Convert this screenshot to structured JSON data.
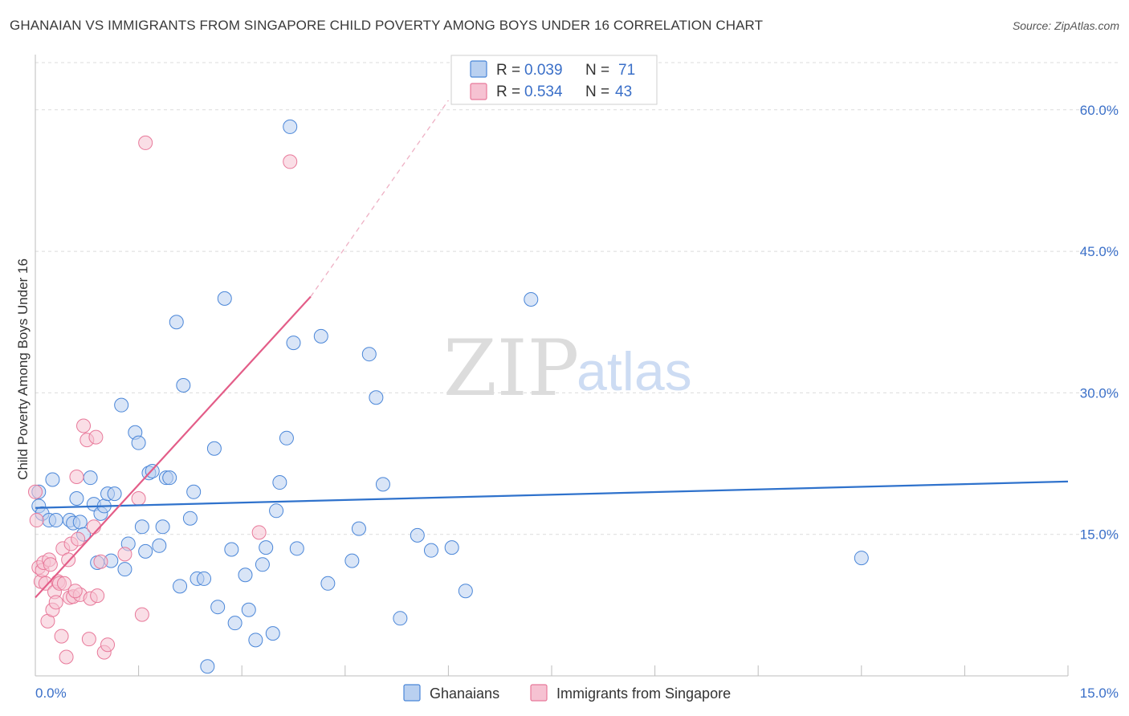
{
  "title": "GHANAIAN VS IMMIGRANTS FROM SINGAPORE CHILD POVERTY AMONG BOYS UNDER 16 CORRELATION CHART",
  "source": "Source: ZipAtlas.com",
  "watermark": {
    "zip": "ZIP",
    "atlas": "atlas"
  },
  "colors": {
    "blue": "#4a86d8",
    "blue_fill": "#b9d0f0",
    "pink": "#e8799a",
    "pink_fill": "#f6c2d2",
    "tick": "#3a6fc8"
  },
  "legend": {
    "rows": [
      {
        "r_label": "R =",
        "r_value": "0.039",
        "n_label": "N =",
        "n_value": "71"
      },
      {
        "r_label": "R =",
        "r_value": "0.534",
        "n_label": "N =",
        "n_value": "43"
      }
    ]
  },
  "bottom_legend": [
    "Ghanaians",
    "Immigrants from Singapore"
  ],
  "chart_data": {
    "type": "scatter",
    "title": "GHANAIAN VS IMMIGRANTS FROM SINGAPORE CHILD POVERTY AMONG BOYS UNDER 16 CORRELATION CHART",
    "xlabel": "",
    "ylabel": "Child Poverty Among Boys Under 16",
    "xlim": [
      0,
      15
    ],
    "ylim": [
      0,
      65
    ],
    "x_tick_labels": [
      "0.0%",
      "15.0%"
    ],
    "y_ticks": [
      15,
      30,
      45,
      60
    ],
    "y_tick_labels": [
      "15.0%",
      "30.0%",
      "45.0%",
      "60.0%"
    ],
    "series": [
      {
        "name": "Ghanaians",
        "r": 0.039,
        "n": 71,
        "trend": {
          "x0": 0,
          "y0": 17.8,
          "x1": 15,
          "y1": 20.6
        },
        "points": [
          [
            0.05,
            19.5
          ],
          [
            0.05,
            18.0
          ],
          [
            0.1,
            17.2
          ],
          [
            0.2,
            16.5
          ],
          [
            0.25,
            20.8
          ],
          [
            0.3,
            16.5
          ],
          [
            0.5,
            16.5
          ],
          [
            0.55,
            16.2
          ],
          [
            0.6,
            18.8
          ],
          [
            0.65,
            16.3
          ],
          [
            0.7,
            15.0
          ],
          [
            0.8,
            21.0
          ],
          [
            0.85,
            18.2
          ],
          [
            0.9,
            12.0
          ],
          [
            0.95,
            17.2
          ],
          [
            1.0,
            18.0
          ],
          [
            1.05,
            19.3
          ],
          [
            1.1,
            12.2
          ],
          [
            1.15,
            19.3
          ],
          [
            1.25,
            28.7
          ],
          [
            1.3,
            11.3
          ],
          [
            1.35,
            14.0
          ],
          [
            1.45,
            25.8
          ],
          [
            1.5,
            24.7
          ],
          [
            1.55,
            15.8
          ],
          [
            1.6,
            13.2
          ],
          [
            1.65,
            21.5
          ],
          [
            1.7,
            21.7
          ],
          [
            1.8,
            13.8
          ],
          [
            1.85,
            15.8
          ],
          [
            1.9,
            21.0
          ],
          [
            1.95,
            21.0
          ],
          [
            2.05,
            37.5
          ],
          [
            2.1,
            9.5
          ],
          [
            2.15,
            30.8
          ],
          [
            2.25,
            16.7
          ],
          [
            2.3,
            19.5
          ],
          [
            2.35,
            10.3
          ],
          [
            2.45,
            10.3
          ],
          [
            2.5,
            1.0
          ],
          [
            2.6,
            24.1
          ],
          [
            2.65,
            7.3
          ],
          [
            2.75,
            40.0
          ],
          [
            2.85,
            13.4
          ],
          [
            2.9,
            5.6
          ],
          [
            3.05,
            10.7
          ],
          [
            3.1,
            7.0
          ],
          [
            3.2,
            3.8
          ],
          [
            3.3,
            11.8
          ],
          [
            3.35,
            13.6
          ],
          [
            3.45,
            4.5
          ],
          [
            3.5,
            17.5
          ],
          [
            3.55,
            20.5
          ],
          [
            3.65,
            25.2
          ],
          [
            3.7,
            58.2
          ],
          [
            3.75,
            35.3
          ],
          [
            4.15,
            36.0
          ],
          [
            4.25,
            9.8
          ],
          [
            4.6,
            12.2
          ],
          [
            4.7,
            15.6
          ],
          [
            4.85,
            34.1
          ],
          [
            4.95,
            29.5
          ],
          [
            5.05,
            20.3
          ],
          [
            5.3,
            6.1
          ],
          [
            5.55,
            14.9
          ],
          [
            5.75,
            13.3
          ],
          [
            6.05,
            13.6
          ],
          [
            6.25,
            9.0
          ],
          [
            7.2,
            39.9
          ],
          [
            12.0,
            12.5
          ],
          [
            3.8,
            13.5
          ]
        ]
      },
      {
        "name": "Immigrants from Singapore",
        "r": 0.534,
        "n": 43,
        "trend": {
          "x0": 0,
          "y0": 8.3,
          "x1": 4.0,
          "y1": 40.2
        },
        "trend_dashed": {
          "x0": 4.0,
          "y0": 40.2,
          "x1": 6.0,
          "y1": 61.0
        },
        "points": [
          [
            0.0,
            19.5
          ],
          [
            0.02,
            16.5
          ],
          [
            0.05,
            11.5
          ],
          [
            0.08,
            10.0
          ],
          [
            0.1,
            11.2
          ],
          [
            0.12,
            12.0
          ],
          [
            0.15,
            9.8
          ],
          [
            0.18,
            5.8
          ],
          [
            0.2,
            12.3
          ],
          [
            0.22,
            11.8
          ],
          [
            0.25,
            7.0
          ],
          [
            0.28,
            8.9
          ],
          [
            0.3,
            7.8
          ],
          [
            0.33,
            10.0
          ],
          [
            0.35,
            9.8
          ],
          [
            0.38,
            4.2
          ],
          [
            0.4,
            13.5
          ],
          [
            0.42,
            9.8
          ],
          [
            0.45,
            2.0
          ],
          [
            0.48,
            12.3
          ],
          [
            0.5,
            8.3
          ],
          [
            0.52,
            14.0
          ],
          [
            0.55,
            8.4
          ],
          [
            0.6,
            21.1
          ],
          [
            0.62,
            14.5
          ],
          [
            0.65,
            8.6
          ],
          [
            0.7,
            26.5
          ],
          [
            0.75,
            25.0
          ],
          [
            0.78,
            3.9
          ],
          [
            0.8,
            8.2
          ],
          [
            0.85,
            15.8
          ],
          [
            0.88,
            25.3
          ],
          [
            0.9,
            8.5
          ],
          [
            0.95,
            12.1
          ],
          [
            1.0,
            2.5
          ],
          [
            1.05,
            3.3
          ],
          [
            1.3,
            12.9
          ],
          [
            1.5,
            18.8
          ],
          [
            1.55,
            6.5
          ],
          [
            1.6,
            56.5
          ],
          [
            3.25,
            15.2
          ],
          [
            3.7,
            54.5
          ],
          [
            0.58,
            9.0
          ]
        ]
      }
    ]
  }
}
